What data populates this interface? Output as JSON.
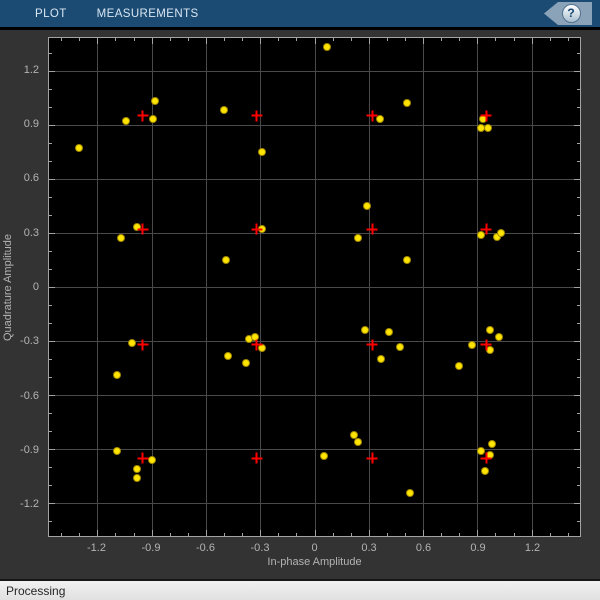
{
  "toolbar": {
    "tabs": [
      {
        "label": "PLOT"
      },
      {
        "label": "MEASUREMENTS"
      }
    ],
    "help_label": "?"
  },
  "statusbar": {
    "text": "Processing"
  },
  "colors": {
    "toolbar_bg": "#1b4b73",
    "figure_bg": "#333333",
    "axes_bg": "#000000",
    "grid": "#4a4a4a",
    "axis_border": "#a3a3a3",
    "tick_text": "#b3b3b3",
    "signal_marker": "#ffe400",
    "reference_marker": "#ff0000",
    "status_bg": "#e8e8e8"
  },
  "chart_data": {
    "type": "scatter",
    "title": "",
    "xlabel": "In-phase Amplitude",
    "ylabel": "Quadrature Amplitude",
    "xlim": [
      -1.467,
      1.467
    ],
    "ylim": [
      -1.381,
      1.381
    ],
    "grid": true,
    "xticks": [
      -1.2,
      -0.9,
      -0.6,
      -0.3,
      0,
      0.3,
      0.6,
      0.9,
      1.2
    ],
    "xtick_labels": [
      "-1.2",
      "-0.9",
      "-0.6",
      "-0.3",
      "0",
      "0.3",
      "0.6",
      "0.9",
      "1.2"
    ],
    "yticks": [
      -1.2,
      -0.9,
      -0.6,
      -0.3,
      0,
      0.3,
      0.6,
      0.9,
      1.2
    ],
    "ytick_labels": [
      "-1.2",
      "-0.9",
      "-0.6",
      "-0.3",
      "0",
      "0.3",
      "0.6",
      "0.9",
      "1.2"
    ],
    "minor_tick_step": 0.1,
    "series": [
      {
        "id": "received-signal",
        "marker": "dot",
        "color": "#ffe400",
        "edge_color": "#a08900",
        "marker_size": 6,
        "points": [
          [
            -1.3,
            0.77
          ],
          [
            -1.04,
            0.92
          ],
          [
            -0.88,
            1.03
          ],
          [
            -0.89,
            0.93
          ],
          [
            -0.5,
            0.98
          ],
          [
            -0.29,
            0.75
          ],
          [
            0.07,
            1.33
          ],
          [
            0.36,
            0.93
          ],
          [
            0.51,
            1.02
          ],
          [
            0.93,
            0.93
          ],
          [
            0.92,
            0.88
          ],
          [
            0.96,
            0.88
          ],
          [
            -0.98,
            0.33
          ],
          [
            -1.07,
            0.27
          ],
          [
            -0.29,
            0.32
          ],
          [
            -0.49,
            0.15
          ],
          [
            0.29,
            0.45
          ],
          [
            0.24,
            0.27
          ],
          [
            0.51,
            0.15
          ],
          [
            0.92,
            0.29
          ],
          [
            1.01,
            0.28
          ],
          [
            1.03,
            0.3
          ],
          [
            -1.01,
            -0.31
          ],
          [
            -1.09,
            -0.49
          ],
          [
            -0.36,
            -0.29
          ],
          [
            -0.33,
            -0.28
          ],
          [
            -0.29,
            -0.34
          ],
          [
            -0.48,
            -0.38
          ],
          [
            -0.38,
            -0.42
          ],
          [
            0.28,
            -0.24
          ],
          [
            0.41,
            -0.25
          ],
          [
            0.47,
            -0.33
          ],
          [
            0.37,
            -0.4
          ],
          [
            0.8,
            -0.44
          ],
          [
            0.87,
            -0.32
          ],
          [
            0.97,
            -0.24
          ],
          [
            1.02,
            -0.28
          ],
          [
            0.97,
            -0.35
          ],
          [
            -1.09,
            -0.91
          ],
          [
            -0.9,
            -0.96
          ],
          [
            -0.98,
            -1.01
          ],
          [
            -0.98,
            -1.06
          ],
          [
            0.05,
            -0.94
          ],
          [
            0.22,
            -0.82
          ],
          [
            0.24,
            -0.86
          ],
          [
            0.53,
            -1.14
          ],
          [
            0.92,
            -0.91
          ],
          [
            0.98,
            -0.87
          ],
          [
            0.97,
            -0.93
          ],
          [
            0.94,
            -1.02
          ]
        ]
      },
      {
        "id": "reference-constellation",
        "marker": "plus",
        "color": "#ff0000",
        "marker_size": 11,
        "points": [
          [
            -0.95,
            0.95
          ],
          [
            -0.32,
            0.95
          ],
          [
            0.32,
            0.95
          ],
          [
            0.95,
            0.95
          ],
          [
            -0.95,
            0.32
          ],
          [
            -0.32,
            0.32
          ],
          [
            0.32,
            0.32
          ],
          [
            0.95,
            0.32
          ],
          [
            -0.95,
            -0.32
          ],
          [
            -0.32,
            -0.32
          ],
          [
            0.32,
            -0.32
          ],
          [
            0.95,
            -0.32
          ],
          [
            -0.95,
            -0.95
          ],
          [
            -0.32,
            -0.95
          ],
          [
            0.32,
            -0.95
          ],
          [
            0.95,
            -0.95
          ]
        ]
      }
    ]
  }
}
